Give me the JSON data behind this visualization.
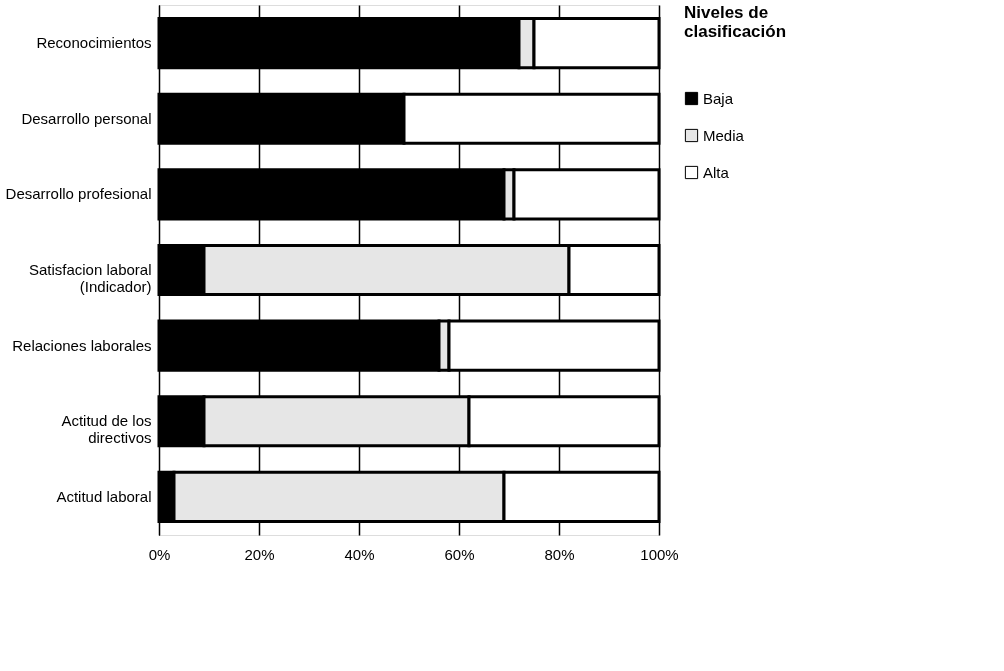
{
  "chart_data": {
    "type": "bar",
    "orientation": "horizontal",
    "stacked": true,
    "categories": [
      "Reconocimientos",
      "Desarrollo personal",
      "Desarrollo profesional",
      "Satisfacion laboral (Indicador)",
      "Relaciones laborales",
      "Actitud de los directivos",
      "Actitud laboral"
    ],
    "series": [
      {
        "name": "Baja",
        "color": "#000000",
        "values": [
          72,
          49,
          69,
          9,
          56,
          9,
          3
        ]
      },
      {
        "name": "Media",
        "color": "#e6e6e6",
        "values": [
          3,
          0,
          2,
          73,
          2,
          53,
          66
        ]
      },
      {
        "name": "Alta",
        "color": "#ffffff",
        "values": [
          25,
          51,
          29,
          18,
          42,
          38,
          31
        ]
      }
    ],
    "xlim": [
      0,
      100
    ],
    "xticks": [
      {
        "value": 0,
        "label": "0%"
      },
      {
        "value": 20,
        "label": "20%"
      },
      {
        "value": 40,
        "label": "40%"
      },
      {
        "value": 60,
        "label": "60%"
      },
      {
        "value": 80,
        "label": "80%"
      },
      {
        "value": 100,
        "label": "100%"
      }
    ],
    "legend_title": "Niveles de clasificación",
    "legend": "right",
    "grid": "x"
  }
}
